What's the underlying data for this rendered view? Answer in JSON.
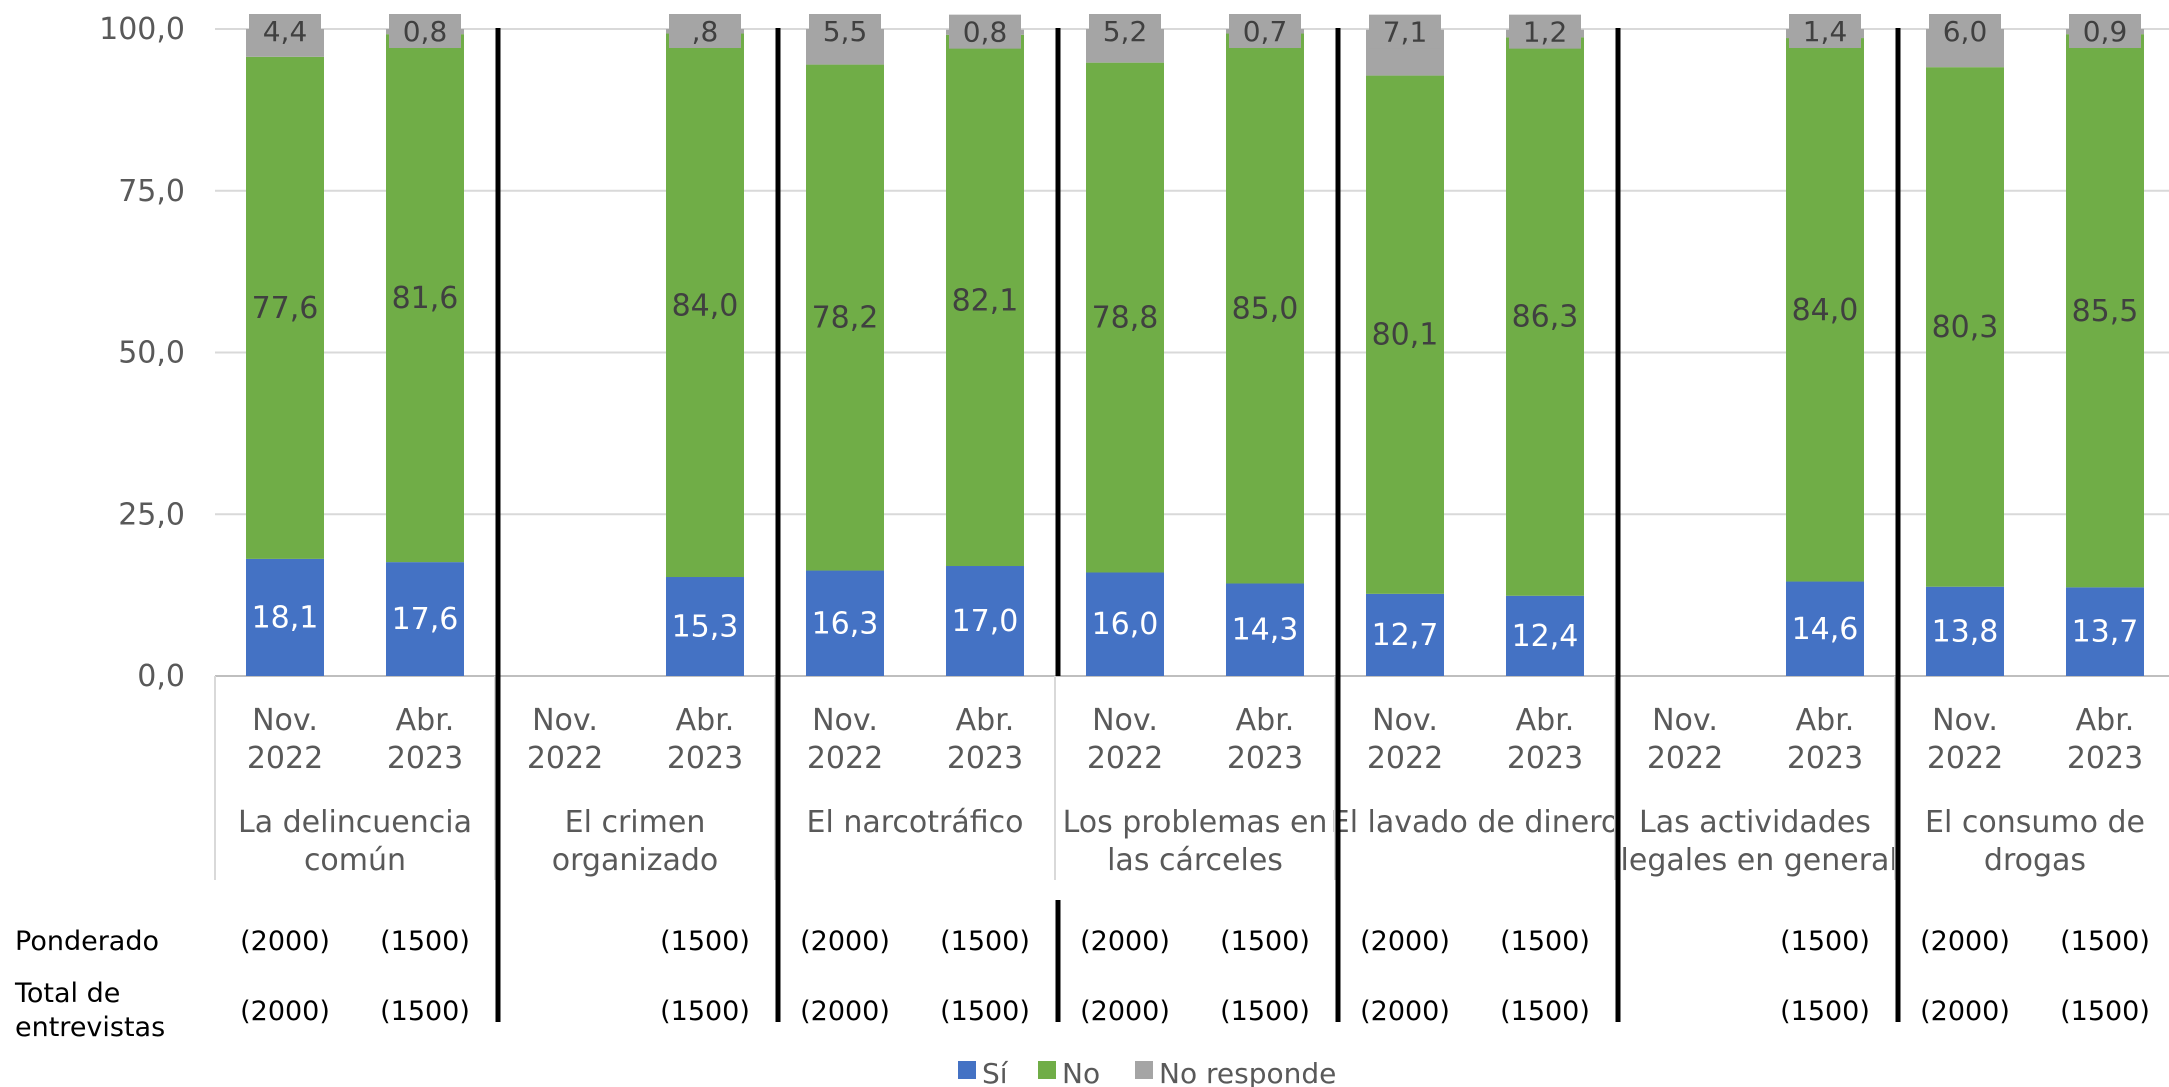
{
  "chart_data": {
    "type": "bar",
    "stacked": true,
    "title": "",
    "xlabel": "",
    "ylabel": "",
    "ylim": [
      0,
      100
    ],
    "y_ticks": [
      "0,0",
      "25,0",
      "50,0",
      "75,0",
      "100,0"
    ],
    "gridlines": true,
    "legend_position": "bottom",
    "colors": {
      "Sí": "#4472c4",
      "No": "#70ad47",
      "No responde": "#a5a5a5"
    },
    "legend": [
      "Sí",
      "No",
      "No responde"
    ],
    "table_row_labels": [
      "Ponderado",
      "Total de\nentrevistas"
    ],
    "groups": [
      {
        "label": "La delincuencia\ncomún",
        "bars": [
          {
            "period": "Nov.\n2022",
            "si": 18.1,
            "no": 77.6,
            "nr": 4.4,
            "si_label": "18,1",
            "no_label": "77,6",
            "nr_label": "4,4",
            "ponderado": "(2000)",
            "total": "(2000)"
          },
          {
            "period": "Abr.\n2023",
            "si": 17.6,
            "no": 81.6,
            "nr": 0.8,
            "si_label": "17,6",
            "no_label": "81,6",
            "nr_label": "0,8",
            "ponderado": "(1500)",
            "total": "(1500)"
          }
        ]
      },
      {
        "label": "El crimen\norganizado",
        "bars": [
          {
            "period": "Nov.\n2022",
            "si": null,
            "no": null,
            "nr": null,
            "si_label": "",
            "no_label": "",
            "nr_label": "",
            "ponderado": "",
            "total": ""
          },
          {
            "period": "Abr.\n2023",
            "si": 15.3,
            "no": 84.0,
            "nr": 0.8,
            "si_label": "15,3",
            "no_label": "84,0",
            "nr_label": ",8",
            "ponderado": "(1500)",
            "total": "(1500)"
          }
        ]
      },
      {
        "label": "El narcotráfico",
        "bars": [
          {
            "period": "Nov.\n2022",
            "si": 16.3,
            "no": 78.2,
            "nr": 5.5,
            "si_label": "16,3",
            "no_label": "78,2",
            "nr_label": "5,5",
            "ponderado": "(2000)",
            "total": "(2000)"
          },
          {
            "period": "Abr.\n2023",
            "si": 17.0,
            "no": 82.1,
            "nr": 0.8,
            "si_label": "17,0",
            "no_label": "82,1",
            "nr_label": "0,8",
            "ponderado": "(1500)",
            "total": "(1500)"
          }
        ]
      },
      {
        "label": "Los problemas en\nlas cárceles",
        "bars": [
          {
            "period": "Nov.\n2022",
            "si": 16.0,
            "no": 78.8,
            "nr": 5.2,
            "si_label": "16,0",
            "no_label": "78,8",
            "nr_label": "5,2",
            "ponderado": "(2000)",
            "total": "(2000)"
          },
          {
            "period": "Abr.\n2023",
            "si": 14.3,
            "no": 85.0,
            "nr": 0.7,
            "si_label": "14,3",
            "no_label": "85,0",
            "nr_label": "0,7",
            "ponderado": "(1500)",
            "total": "(1500)"
          }
        ]
      },
      {
        "label": "El lavado de dinero",
        "bars": [
          {
            "period": "Nov.\n2022",
            "si": 12.7,
            "no": 80.1,
            "nr": 7.1,
            "si_label": "12,7",
            "no_label": "80,1",
            "nr_label": "7,1",
            "ponderado": "(2000)",
            "total": "(2000)"
          },
          {
            "period": "Abr.\n2023",
            "si": 12.4,
            "no": 86.3,
            "nr": 1.2,
            "si_label": "12,4",
            "no_label": "86,3",
            "nr_label": "1,2",
            "ponderado": "(1500)",
            "total": "(1500)"
          }
        ]
      },
      {
        "label": "Las actividades\nilegales en general",
        "bars": [
          {
            "period": "Nov.\n2022",
            "si": null,
            "no": null,
            "nr": null,
            "si_label": "",
            "no_label": "",
            "nr_label": "",
            "ponderado": "",
            "total": ""
          },
          {
            "period": "Abr.\n2023",
            "si": 14.6,
            "no": 84.0,
            "nr": 1.4,
            "si_label": "14,6",
            "no_label": "84,0",
            "nr_label": "1,4",
            "ponderado": "(1500)",
            "total": "(1500)"
          }
        ]
      },
      {
        "label": "El consumo de\ndrogas",
        "bars": [
          {
            "period": "Nov.\n2022",
            "si": 13.8,
            "no": 80.3,
            "nr": 6.0,
            "si_label": "13,8",
            "no_label": "80,3",
            "nr_label": "6,0",
            "ponderado": "(2000)",
            "total": "(2000)"
          },
          {
            "period": "Abr.\n2023",
            "si": 13.7,
            "no": 85.5,
            "nr": 0.9,
            "si_label": "13,7",
            "no_label": "85,5",
            "nr_label": "0,9",
            "ponderado": "(1500)",
            "total": "(1500)"
          }
        ]
      }
    ]
  }
}
